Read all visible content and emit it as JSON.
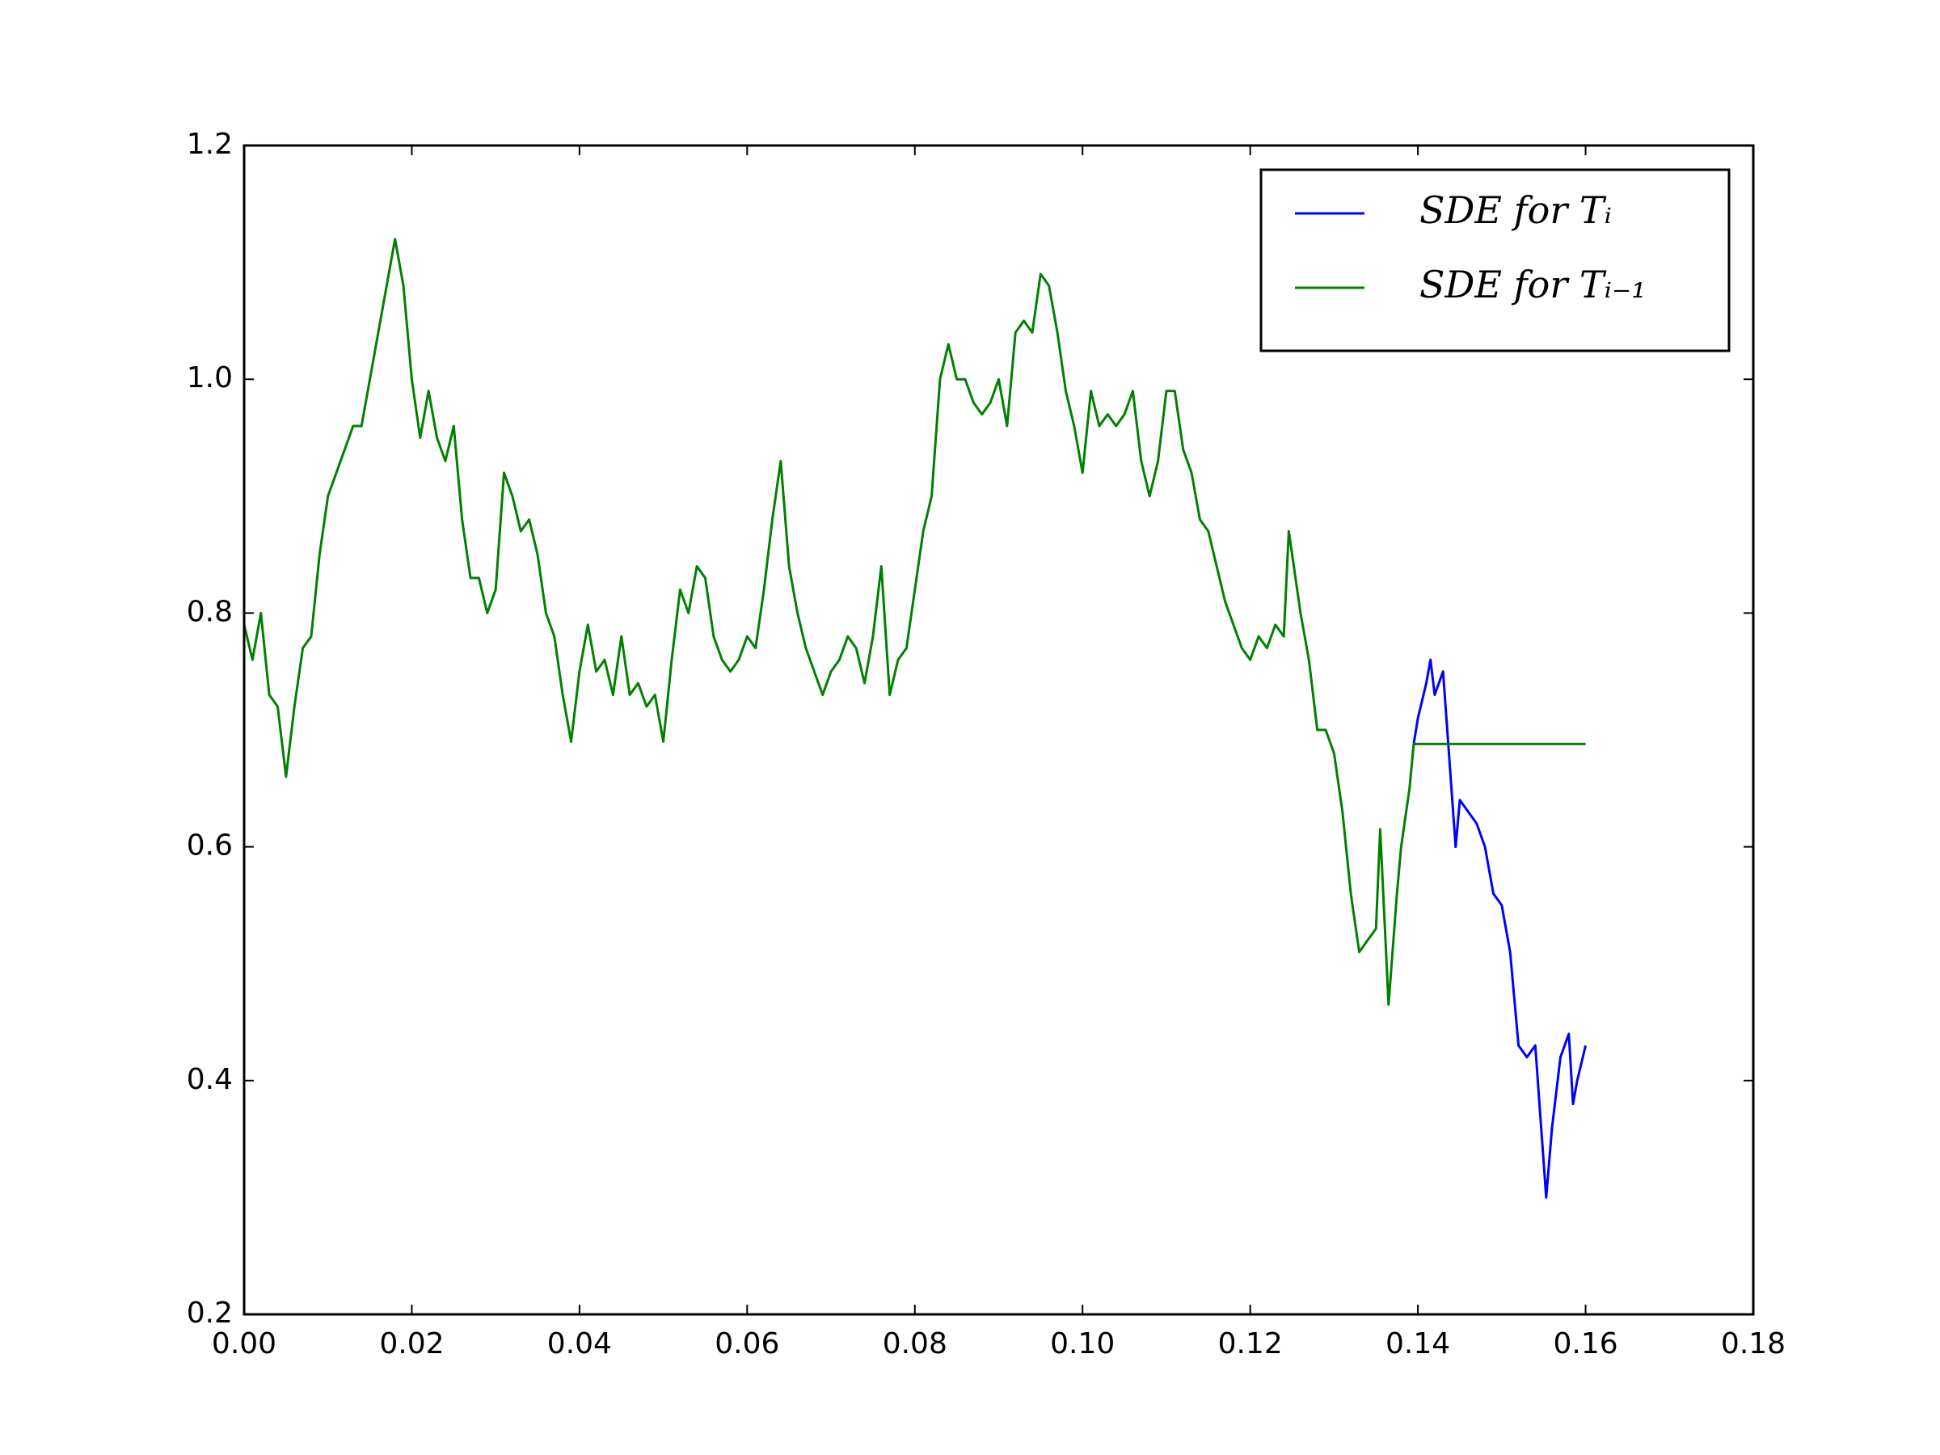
{
  "chart_data": {
    "type": "line",
    "xlim": [
      0,
      0.18
    ],
    "ylim": [
      0.2,
      1.2
    ],
    "xticks": [
      {
        "value": 0,
        "label": "0.00"
      },
      {
        "value": 0.02,
        "label": "0.02"
      },
      {
        "value": 0.04,
        "label": "0.04"
      },
      {
        "value": 0.06,
        "label": "0.06"
      },
      {
        "value": 0.08,
        "label": "0.08"
      },
      {
        "value": 0.1,
        "label": "0.10"
      },
      {
        "value": 0.12,
        "label": "0.12"
      },
      {
        "value": 0.14,
        "label": "0.14"
      },
      {
        "value": 0.16,
        "label": "0.16"
      },
      {
        "value": 0.18,
        "label": "0.18"
      }
    ],
    "yticks": [
      0.2,
      0.4,
      0.6,
      0.8,
      {
        "value": 1,
        "label": "1.0"
      },
      1.2
    ],
    "grid": false,
    "legend": "upper right",
    "series": [
      {
        "name": "SDE for Tᵢ",
        "color": "#0000ff",
        "x": [
          0.1395,
          0.14,
          0.141,
          0.1415,
          0.142,
          0.143,
          0.1435,
          0.144,
          0.1445,
          0.145,
          0.146,
          0.147,
          0.148,
          0.149,
          0.15,
          0.151,
          0.152,
          0.153,
          0.154,
          0.1548,
          0.1553,
          0.156,
          0.157,
          0.158,
          0.1585,
          0.159,
          0.16
        ],
        "values": [
          0.688,
          0.71,
          0.74,
          0.76,
          0.73,
          0.75,
          0.7,
          0.65,
          0.6,
          0.64,
          0.63,
          0.62,
          0.6,
          0.56,
          0.55,
          0.51,
          0.43,
          0.42,
          0.43,
          0.35,
          0.3,
          0.36,
          0.42,
          0.44,
          0.38,
          0.4,
          0.43
        ]
      },
      {
        "name": "SDE for Tᵢ₋₁",
        "color": "#008000",
        "x": [
          0,
          0.001,
          0.002,
          0.003,
          0.004,
          0.005,
          0.006,
          0.007,
          0.008,
          0.009,
          0.01,
          0.011,
          0.012,
          0.013,
          0.014,
          0.015,
          0.016,
          0.017,
          0.018,
          0.019,
          0.02,
          0.021,
          0.022,
          0.023,
          0.024,
          0.025,
          0.026,
          0.027,
          0.028,
          0.029,
          0.03,
          0.031,
          0.032,
          0.033,
          0.034,
          0.035,
          0.036,
          0.037,
          0.038,
          0.039,
          0.04,
          0.041,
          0.042,
          0.043,
          0.044,
          0.045,
          0.046,
          0.047,
          0.048,
          0.049,
          0.05,
          0.051,
          0.052,
          0.053,
          0.054,
          0.055,
          0.056,
          0.057,
          0.058,
          0.059,
          0.06,
          0.061,
          0.062,
          0.063,
          0.064,
          0.065,
          0.066,
          0.067,
          0.068,
          0.069,
          0.07,
          0.071,
          0.072,
          0.073,
          0.074,
          0.075,
          0.076,
          0.077,
          0.078,
          0.079,
          0.08,
          0.081,
          0.082,
          0.083,
          0.084,
          0.085,
          0.086,
          0.087,
          0.088,
          0.089,
          0.09,
          0.091,
          0.092,
          0.093,
          0.094,
          0.095,
          0.096,
          0.097,
          0.098,
          0.099,
          0.1,
          0.101,
          0.102,
          0.103,
          0.104,
          0.105,
          0.106,
          0.107,
          0.108,
          0.109,
          0.11,
          0.111,
          0.112,
          0.113,
          0.114,
          0.115,
          0.116,
          0.117,
          0.118,
          0.119,
          0.12,
          0.121,
          0.122,
          0.123,
          0.124,
          0.1246,
          0.126,
          0.127,
          0.128,
          0.129,
          0.13,
          0.131,
          0.132,
          0.133,
          0.134,
          0.135,
          0.1355,
          0.1365,
          0.1375,
          0.138,
          0.139,
          0.1395,
          0.16
        ],
        "values": [
          0.79,
          0.76,
          0.8,
          0.73,
          0.72,
          0.66,
          0.72,
          0.77,
          0.78,
          0.85,
          0.9,
          0.92,
          0.94,
          0.96,
          0.96,
          1.0,
          1.04,
          1.08,
          1.12,
          1.08,
          1.0,
          0.95,
          0.99,
          0.95,
          0.93,
          0.96,
          0.88,
          0.83,
          0.83,
          0.8,
          0.82,
          0.92,
          0.9,
          0.87,
          0.88,
          0.85,
          0.8,
          0.78,
          0.73,
          0.69,
          0.75,
          0.79,
          0.75,
          0.76,
          0.73,
          0.78,
          0.73,
          0.74,
          0.72,
          0.73,
          0.69,
          0.76,
          0.82,
          0.8,
          0.84,
          0.83,
          0.78,
          0.76,
          0.75,
          0.76,
          0.78,
          0.77,
          0.82,
          0.88,
          0.93,
          0.84,
          0.8,
          0.77,
          0.75,
          0.73,
          0.75,
          0.76,
          0.78,
          0.77,
          0.74,
          0.78,
          0.84,
          0.73,
          0.76,
          0.77,
          0.82,
          0.87,
          0.9,
          1.0,
          1.03,
          1.0,
          1.0,
          0.98,
          0.97,
          0.98,
          1.0,
          0.96,
          1.04,
          1.05,
          1.04,
          1.09,
          1.08,
          1.04,
          0.99,
          0.96,
          0.92,
          0.99,
          0.96,
          0.97,
          0.96,
          0.97,
          0.99,
          0.93,
          0.9,
          0.93,
          0.99,
          0.99,
          0.94,
          0.92,
          0.88,
          0.87,
          0.84,
          0.81,
          0.79,
          0.77,
          0.76,
          0.78,
          0.77,
          0.79,
          0.78,
          0.87,
          0.8,
          0.76,
          0.7,
          0.7,
          0.68,
          0.63,
          0.56,
          0.51,
          0.52,
          0.53,
          0.615,
          0.465,
          0.56,
          0.6,
          0.65,
          0.688,
          0.688
        ]
      }
    ]
  }
}
